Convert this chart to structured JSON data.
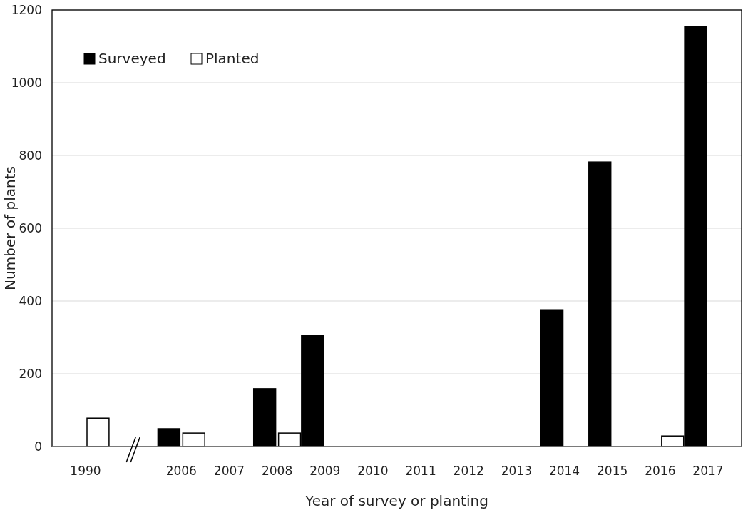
{
  "chart_data": {
    "type": "bar",
    "xlabel": "Year of survey or planting",
    "ylabel": "Number of plants",
    "categories": [
      "1990",
      null,
      "2006",
      "2007",
      "2008",
      "2009",
      "2010",
      "2011",
      "2012",
      "2013",
      "2014",
      "2015",
      "2016",
      "2017"
    ],
    "series": [
      {
        "name": "Surveyed",
        "color": "#000000",
        "values": [
          null,
          null,
          49,
          null,
          159,
          306,
          null,
          null,
          null,
          null,
          376,
          782,
          null,
          1155
        ]
      },
      {
        "name": "Planted",
        "color": "#ffffff",
        "values": [
          78,
          null,
          37,
          null,
          37,
          null,
          null,
          null,
          null,
          null,
          null,
          null,
          29,
          null
        ]
      }
    ],
    "ylim": [
      0,
      1200
    ],
    "yticks": [
      0,
      200,
      400,
      600,
      800,
      1000,
      1200
    ],
    "grid": "y",
    "legend": "top left"
  }
}
